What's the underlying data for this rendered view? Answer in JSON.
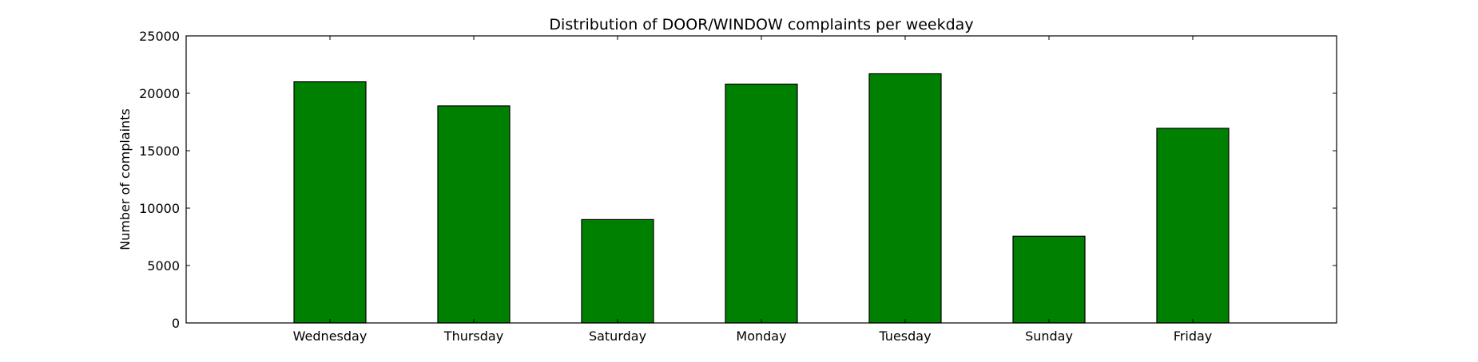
{
  "chart_data": {
    "type": "bar",
    "title": "Distribution of  DOOR/WINDOW complaints per weekday",
    "xlabel": "",
    "ylabel": "Number of complaints",
    "categories": [
      "Wednesday",
      "Thursday",
      "Saturday",
      "Monday",
      "Tuesday",
      "Sunday",
      "Friday"
    ],
    "values": [
      21000,
      18900,
      9000,
      20800,
      21700,
      7550,
      16950
    ],
    "ylim": [
      0,
      25000
    ],
    "yticks": [
      0,
      5000,
      10000,
      15000,
      20000,
      25000
    ],
    "xlim": [
      -1,
      7
    ],
    "grid": false,
    "legend": "none",
    "bar_color": "#008000",
    "edge_color": "#000000"
  }
}
